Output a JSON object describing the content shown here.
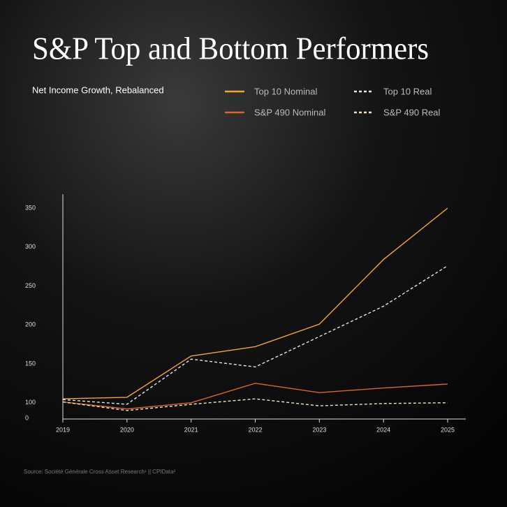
{
  "chart_data": {
    "type": "line",
    "title": "S&P Top and Bottom Performers",
    "subtitle": "Net Income Growth, Rebalanced",
    "source": "Source: Société Générale Cross Asset Research¹ || CPIData²",
    "categories": [
      "2019",
      "2020",
      "2021",
      "2022",
      "2023",
      "2024",
      "2025"
    ],
    "ylim": [
      0,
      350
    ],
    "axis_break": [
      0,
      80
    ],
    "yticks": [
      0,
      100,
      150,
      200,
      250,
      300,
      350
    ],
    "series": [
      {
        "name": "Top 10 Nominal",
        "color": "#f2a33a",
        "dashed": false,
        "values": [
          105,
          107,
          160,
          172,
          201,
          284,
          350
        ]
      },
      {
        "name": "S&P 490 Nominal",
        "color": "#d9652a",
        "dashed": false,
        "values": [
          101,
          92,
          100,
          125,
          113,
          119,
          124
        ]
      },
      {
        "name": "Top 10 Real",
        "color": "#e6e6e6",
        "dashed": true,
        "values": [
          104,
          98,
          156,
          146,
          185,
          224,
          276
        ]
      },
      {
        "name": "S&P 490 Real",
        "color": "#f3e2c4",
        "dashed": true,
        "values": [
          101,
          90,
          98,
          105,
          96,
          99,
          100
        ]
      }
    ]
  }
}
